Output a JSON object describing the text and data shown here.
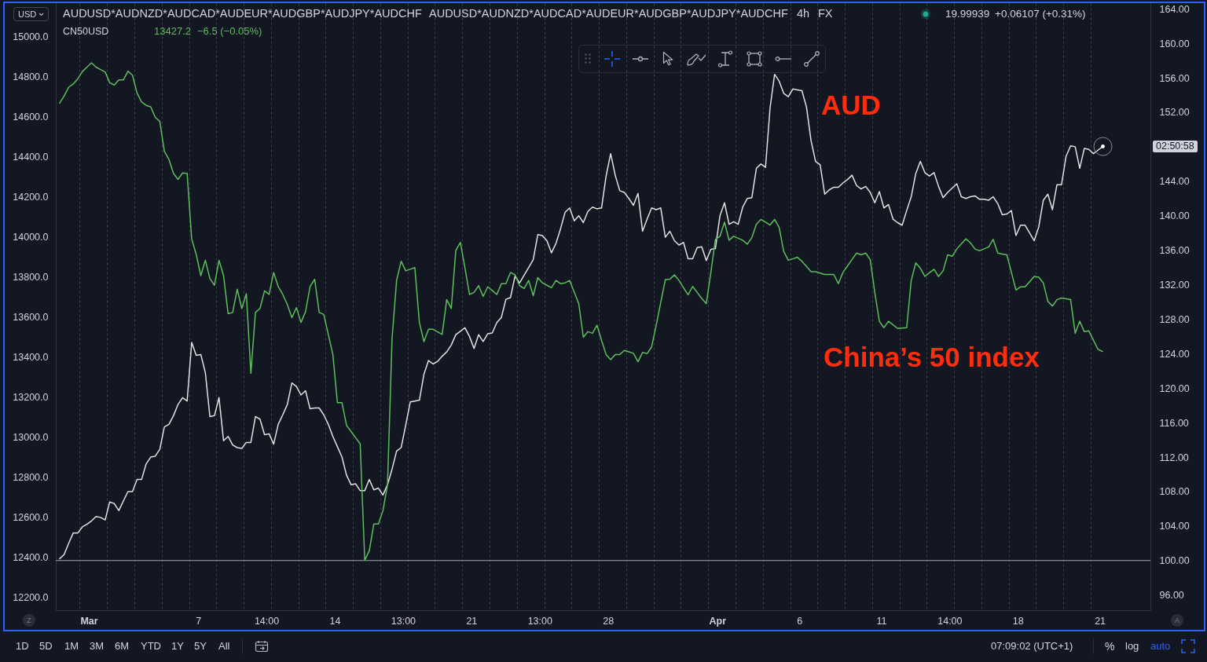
{
  "chart_data": {
    "type": "line",
    "title": "AUDUSD*AUDNZD*AUDCAD*AUDEUR*AUDGBP*AUDJPY*AUDCHF",
    "annotations": [
      "AUDUSD*AUDNZD*AUDCAD*AUDEUR*AUDGBP*AUDJPY*AUDCHF",
      "4h",
      "FX",
      "19.99939",
      "+0.06107 (+0.31%)",
      "CN50USD",
      "13427.2",
      "−6.5 (−0.05%)",
      "USD",
      "02:50:58",
      "Z",
      "A",
      "1D",
      "5D",
      "1M",
      "3M",
      "6M",
      "YTD",
      "1Y",
      "5Y",
      "All",
      "07:09:02 (UTC+1)",
      "%",
      "log",
      "auto"
    ],
    "categories": [
      null,
      null,
      null,
      null,
      null,
      null,
      "Mar",
      null,
      null,
      null,
      null,
      null,
      null,
      null,
      null,
      null,
      null,
      null,
      null,
      null,
      null,
      null,
      null,
      null,
      null,
      null,
      null,
      null,
      null,
      null,
      "7",
      null,
      null,
      null,
      null,
      null,
      null,
      null,
      null,
      null,
      null,
      null,
      null,
      null,
      null,
      "14:00",
      null,
      null,
      null,
      null,
      null,
      null,
      null,
      null,
      null,
      null,
      null,
      null,
      null,
      null,
      "14",
      null,
      null,
      null,
      null,
      null,
      null,
      null,
      null,
      null,
      null,
      null,
      null,
      null,
      null,
      "13:00",
      null,
      null,
      null,
      null,
      null,
      null,
      null,
      null,
      null,
      null,
      null,
      null,
      null,
      null,
      "21",
      null,
      null,
      null,
      null,
      null,
      null,
      null,
      null,
      null,
      null,
      null,
      null,
      null,
      null,
      "13:00",
      null,
      null,
      null,
      null,
      null,
      null,
      null,
      null,
      null,
      null,
      null,
      null,
      null,
      null,
      "28",
      null,
      null,
      null,
      null,
      null,
      null,
      null,
      null,
      null,
      null,
      null,
      null,
      null,
      null,
      null,
      null,
      null,
      null,
      null,
      null,
      null,
      null,
      null,
      "Apr",
      null,
      null,
      null,
      null,
      null,
      null,
      null,
      null,
      null,
      null,
      null,
      null,
      null,
      null,
      null,
      null,
      null,
      "6",
      null,
      null,
      null,
      null,
      null,
      null,
      null,
      null,
      null,
      null,
      null,
      null,
      null,
      null,
      null,
      null,
      null,
      "11",
      null,
      null,
      null,
      null,
      null,
      null,
      null,
      null,
      null,
      null,
      null,
      null,
      null,
      null,
      "14:00",
      null,
      null,
      null,
      null,
      null,
      null,
      null,
      null,
      null,
      null,
      null,
      null,
      null,
      null,
      "18",
      null,
      null,
      null,
      null,
      null,
      null,
      null,
      null,
      null,
      null,
      null,
      null,
      null,
      null,
      null,
      null,
      null,
      "21",
      null,
      null,
      null,
      null,
      null,
      null,
      null,
      null,
      null,
      null,
      null
    ],
    "ylim": [
      12134,
      15168
    ],
    "yticks": [
      {
        "value": 12200,
        "label": "12200.0"
      },
      {
        "value": 12400,
        "label": "12400.0"
      },
      {
        "value": 12600,
        "label": "12600.0"
      },
      {
        "value": 12800,
        "label": "12800.0"
      },
      {
        "value": 13000,
        "label": "13000.0"
      },
      {
        "value": 13200,
        "label": "13200.0"
      },
      {
        "value": 13400,
        "label": "13400.0"
      },
      {
        "value": 13600,
        "label": "13600.0"
      },
      {
        "value": 13800,
        "label": "13800.0"
      },
      {
        "value": 14000,
        "label": "14000.0"
      },
      {
        "value": 14200,
        "label": "14200.0"
      },
      {
        "value": 14400,
        "label": "14400.0"
      },
      {
        "value": 14600,
        "label": "14600.0"
      },
      {
        "value": 14800,
        "label": "14800.0"
      },
      {
        "value": 15000,
        "label": "15000.0"
      }
    ],
    "y2lim": [
      94.24,
      164.66
    ],
    "y2ticks": [
      {
        "value": 96,
        "label": "96.00"
      },
      {
        "value": 100,
        "label": "100.00"
      },
      {
        "value": 104,
        "label": "104.00"
      },
      {
        "value": 108,
        "label": "108.00"
      },
      {
        "value": 112,
        "label": "112.00"
      },
      {
        "value": 116,
        "label": "116.00"
      },
      {
        "value": 120,
        "label": "120.00"
      },
      {
        "value": 124,
        "label": "124.00"
      },
      {
        "value": 128,
        "label": "128.00"
      },
      {
        "value": 132,
        "label": "132.00"
      },
      {
        "value": 136,
        "label": "136.00"
      },
      {
        "value": 140,
        "label": "140.00"
      },
      {
        "value": 144,
        "label": "144.00"
      },
      {
        "value": 152,
        "label": "152.00"
      },
      {
        "value": 156,
        "label": "156.00"
      },
      {
        "value": 160,
        "label": "160.00"
      },
      {
        "value": 164,
        "label": "164.00"
      }
    ],
    "grid": "x",
    "ref_lines": [
      {
        "axis": "y2",
        "value": 100,
        "color": "#a3a6af"
      }
    ],
    "series": [
      {
        "name": "AUD",
        "color": "#e2e2e2",
        "axis": "y2",
        "values": [
          100.2,
          100.7,
          102.0,
          103.2,
          103.2,
          103.9,
          104.2,
          104.6,
          105.1,
          105.0,
          104.7,
          106.8,
          106.6,
          105.8,
          106.9,
          108.0,
          108.0,
          109.4,
          109.4,
          111.2,
          112.0,
          112.1,
          112.9,
          115.5,
          115.8,
          116.8,
          118.1,
          118.9,
          118.5,
          125.3,
          123.8,
          123.9,
          121.8,
          116.7,
          116.8,
          118.9,
          113.9,
          114.4,
          113.4,
          113.1,
          113.0,
          113.7,
          113.7,
          116.7,
          116.4,
          114.6,
          114.7,
          113.5,
          115.8,
          116.9,
          118.1,
          120.6,
          120.2,
          119.2,
          119.7,
          117.6,
          117.7,
          117.7,
          116.9,
          115.8,
          114.4,
          113.2,
          112.0,
          109.9,
          108.8,
          108.9,
          108.1,
          108.1,
          109.4,
          108.2,
          108.4,
          107.6,
          108.8,
          110.6,
          112.7,
          113.1,
          115.7,
          118.4,
          118.5,
          118.6,
          121.6,
          123.2,
          122.8,
          123.1,
          123.7,
          124.2,
          125.0,
          126.2,
          126.6,
          127.0,
          126.0,
          124.6,
          126.2,
          125.4,
          126.3,
          126.4,
          127.6,
          128.2,
          130.3,
          130.5,
          133.0,
          132.2,
          133.1,
          134.0,
          134.9,
          137.8,
          137.7,
          137.1,
          135.7,
          136.8,
          138.5,
          140.4,
          140.9,
          139.4,
          140.0,
          139.2,
          140.5,
          141.0,
          140.8,
          140.9,
          144.6,
          147.2,
          144.7,
          142.9,
          142.7,
          142.0,
          141.2,
          142.6,
          138.2,
          139.6,
          140.9,
          140.7,
          140.9,
          137.5,
          138.2,
          137.1,
          136.6,
          136.9,
          135.0,
          135.0,
          136.3,
          136.4,
          134.8,
          136.1,
          136.2,
          140.0,
          141.5,
          139.0,
          139.3,
          139.0,
          141.0,
          142.0,
          142.1,
          145.5,
          146.0,
          145.6,
          152.5,
          156.4,
          155.6,
          154.2,
          153.8,
          154.7,
          154.6,
          154.5,
          152.6,
          148.7,
          146.3,
          145.9,
          142.5,
          143.0,
          143.3,
          143.3,
          143.8,
          144.2,
          144.7,
          143.5,
          143.1,
          143.4,
          142.7,
          141.5,
          142.8,
          140.9,
          141.3,
          139.6,
          139.2,
          138.9,
          140.6,
          142.2,
          144.9,
          146.3,
          145.0,
          144.6,
          145.0,
          143.4,
          142.1,
          142.7,
          143.2,
          143.7,
          142.2,
          142.0,
          142.2,
          142.3,
          141.9,
          141.9,
          141.8,
          142.2,
          141.4,
          140.1,
          140.2,
          140.6,
          137.7,
          138.9,
          138.9,
          138.0,
          137.1,
          138.7,
          141.8,
          142.5,
          140.7,
          143.6,
          143.6,
          146.9,
          148.1,
          148.0,
          145.5,
          147.8,
          147.7,
          147.2,
          147.6,
          148.0,
          null,
          null,
          null,
          null,
          null,
          null,
          null,
          null,
          null,
          null
        ]
      },
      {
        "name": "China’s 50 index",
        "color": "#5cbf5c",
        "values": [
          14668,
          14704,
          14748,
          14764,
          14790,
          14826,
          14848,
          14870,
          14848,
          14836,
          14824,
          14770,
          14759,
          14784,
          14784,
          14828,
          14808,
          14719,
          14674,
          14657,
          14650,
          14597,
          14577,
          14427,
          14387,
          14317,
          14287,
          14319,
          14317,
          13989,
          13912,
          13806,
          13883,
          13792,
          13758,
          13883,
          13806,
          13616,
          13622,
          13738,
          13642,
          13716,
          13318,
          13622,
          13642,
          13730,
          13712,
          13822,
          13752,
          13712,
          13662,
          13596,
          13646,
          13572,
          13626,
          13752,
          13788,
          13622,
          13612,
          13512,
          13412,
          13171,
          13171,
          13058,
          13027,
          12996,
          12965,
          12384,
          12431,
          12565,
          12565,
          12631,
          12761,
          13492,
          13783,
          13878,
          13830,
          13838,
          13846,
          13572,
          13476,
          13538,
          13538,
          13525,
          13512,
          13686,
          13642,
          13932,
          13972,
          13846,
          13712,
          13722,
          13756,
          13702,
          13750,
          13732,
          13712,
          13766,
          13766,
          13822,
          13810,
          13756,
          13742,
          13782,
          13706,
          13796,
          13770,
          13758,
          13746,
          13782,
          13766,
          13770,
          13782,
          13724,
          13666,
          13498,
          13526,
          13518,
          13558,
          13482,
          13412,
          13386,
          13412,
          13412,
          13432,
          13425,
          13418,
          13376,
          13422,
          13416,
          13450,
          13558,
          13672,
          13786,
          13788,
          13810,
          13782,
          13746,
          13710,
          13752,
          13722,
          13692,
          13666,
          13822,
          13987,
          14003,
          14073,
          13983,
          14003,
          13993,
          13983,
          13963,
          13996,
          14063,
          14087,
          14073,
          14059,
          14087,
          14047,
          13927,
          13883,
          13890,
          13898,
          13878,
          13852,
          13826,
          13826,
          13819,
          13812,
          13812,
          13812,
          13766,
          13822,
          13854,
          13887,
          13919,
          13910,
          13919,
          13886,
          13722,
          13578,
          13546,
          13578,
          13560,
          13542,
          13544,
          13546,
          13782,
          13870,
          13843,
          13802,
          13820,
          13838,
          13802,
          13830,
          13910,
          13903,
          13939,
          13965,
          13990,
          13970,
          13939,
          13930,
          13940,
          13950,
          13987,
          13919,
          13914,
          13910,
          13822,
          13734,
          13750,
          13750,
          13776,
          13802,
          13798,
          13770,
          13678,
          13654,
          13686,
          13694,
          13690,
          13686,
          13518,
          13578,
          13526,
          13530,
          13484,
          13438,
          13427,
          null,
          null,
          null,
          null,
          null,
          null,
          null,
          null,
          null,
          null
        ]
      }
    ]
  }
}
